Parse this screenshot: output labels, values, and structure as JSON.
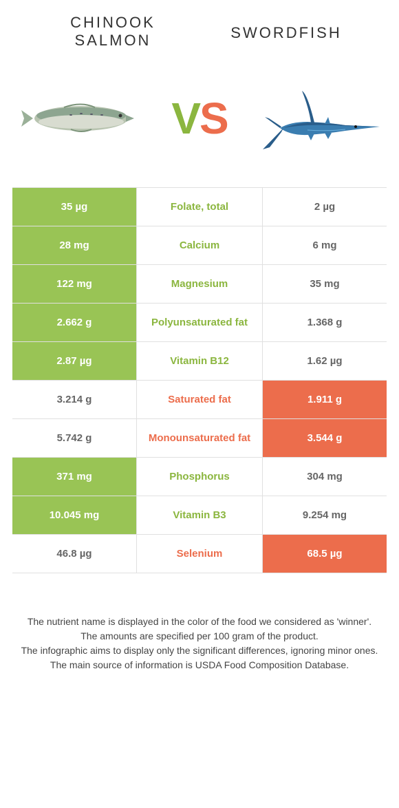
{
  "header": {
    "left_title_line1": "CHINOOK",
    "left_title_line2": "SALMON",
    "right_title": "SWORDFISH",
    "vs_v": "V",
    "vs_s": "S"
  },
  "colors": {
    "green": "#99c455",
    "green_text": "#8bb63f",
    "orange": "#ec6d4c",
    "white": "#ffffff"
  },
  "rows": [
    {
      "left": "35 µg",
      "left_winner": true,
      "label": "Folate, total",
      "label_color": "green",
      "right": "2 µg",
      "right_winner": false
    },
    {
      "left": "28 mg",
      "left_winner": true,
      "label": "Calcium",
      "label_color": "green",
      "right": "6 mg",
      "right_winner": false
    },
    {
      "left": "122 mg",
      "left_winner": true,
      "label": "Magnesium",
      "label_color": "green",
      "right": "35 mg",
      "right_winner": false
    },
    {
      "left": "2.662 g",
      "left_winner": true,
      "label": "Polyunsaturated fat",
      "label_color": "green",
      "right": "1.368 g",
      "right_winner": false
    },
    {
      "left": "2.87 µg",
      "left_winner": true,
      "label": "Vitamin B12",
      "label_color": "green",
      "right": "1.62 µg",
      "right_winner": false
    },
    {
      "left": "3.214 g",
      "left_winner": false,
      "label": "Saturated fat",
      "label_color": "orange",
      "right": "1.911 g",
      "right_winner": true
    },
    {
      "left": "5.742 g",
      "left_winner": false,
      "label": "Monounsaturated fat",
      "label_color": "orange",
      "right": "3.544 g",
      "right_winner": true
    },
    {
      "left": "371 mg",
      "left_winner": true,
      "label": "Phosphorus",
      "label_color": "green",
      "right": "304 mg",
      "right_winner": false
    },
    {
      "left": "10.045 mg",
      "left_winner": true,
      "label": "Vitamin B3",
      "label_color": "green",
      "right": "9.254 mg",
      "right_winner": false
    },
    {
      "left": "46.8 µg",
      "left_winner": false,
      "label": "Selenium",
      "label_color": "orange",
      "right": "68.5 µg",
      "right_winner": true
    }
  ],
  "footer": {
    "line1": "The nutrient name is displayed in the color of the food we considered as 'winner'.",
    "line2": "The amounts are specified per 100 gram of the product.",
    "line3": "The infographic aims to display only the significant differences, ignoring minor ones.",
    "line4": "The main source of information is USDA Food Composition Database."
  }
}
